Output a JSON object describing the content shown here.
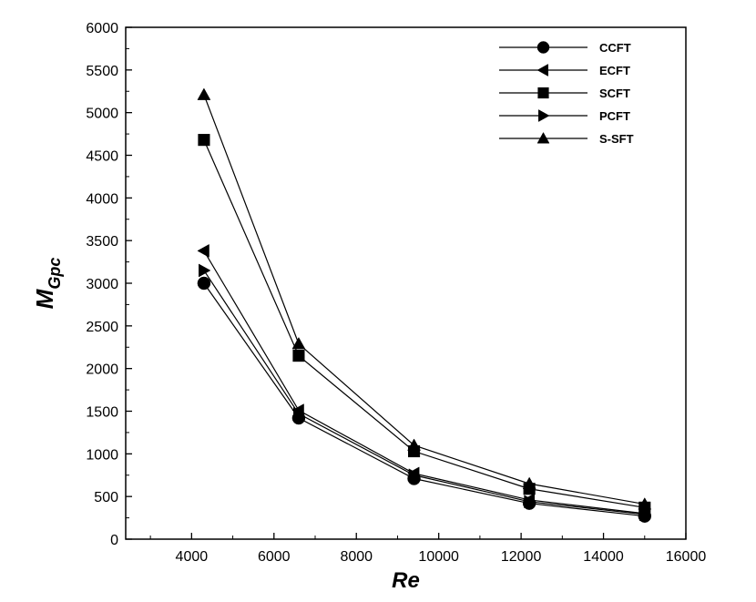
{
  "chart_data": {
    "type": "line",
    "title": "",
    "xlabel": "Re",
    "ylabel": "M",
    "ylabel_subscript": "Gpc",
    "xlim": [
      2400,
      16000
    ],
    "ylim": [
      0,
      6000
    ],
    "x_ticks": [
      4000,
      6000,
      8000,
      10000,
      12000,
      14000,
      16000
    ],
    "x_tick_labels": [
      "4000",
      "6000",
      "8000",
      "10000",
      "12000",
      "14000",
      "16000"
    ],
    "y_ticks": [
      0,
      500,
      1000,
      1500,
      2000,
      2500,
      3000,
      3500,
      4000,
      4500,
      5000,
      5500,
      6000
    ],
    "y_tick_labels": [
      "0",
      "500",
      "1000",
      "1500",
      "2000",
      "2500",
      "3000",
      "3500",
      "4000",
      "4500",
      "5000",
      "5500",
      "6000"
    ],
    "grid": false,
    "legend_position": "top-right",
    "x": [
      4300,
      6600,
      9400,
      12200,
      15000
    ],
    "series": [
      {
        "name": "CCFT",
        "marker": "circle",
        "values": [
          3000,
          1420,
          710,
          420,
          270
        ]
      },
      {
        "name": "ECFT",
        "marker": "triangle-left",
        "values": [
          3380,
          1510,
          770,
          460,
          300
        ]
      },
      {
        "name": "SCFT",
        "marker": "square",
        "values": [
          4680,
          2150,
          1030,
          590,
          370
        ]
      },
      {
        "name": "PCFT",
        "marker": "triangle-right",
        "values": [
          3150,
          1470,
          750,
          440,
          290
        ]
      },
      {
        "name": "S-SFT",
        "marker": "triangle-up",
        "values": [
          5210,
          2290,
          1100,
          650,
          410
        ]
      }
    ]
  }
}
